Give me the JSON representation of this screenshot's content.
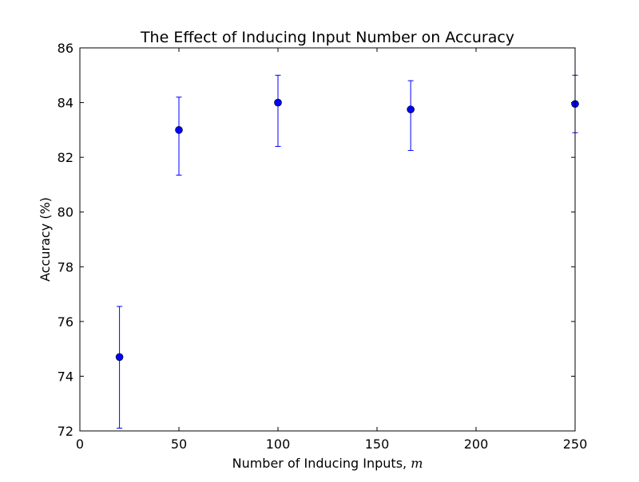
{
  "chart_data": {
    "type": "scatter",
    "title": "The Effect of Inducing Input Number on Accuracy",
    "xlabel": "Number of Inducing Inputs, ",
    "xlabel_var": "m",
    "ylabel": "Accuracy (%)",
    "xlim": [
      0,
      250
    ],
    "ylim": [
      72,
      86
    ],
    "xticks": [
      0,
      50,
      100,
      150,
      200,
      250
    ],
    "yticks": [
      72,
      74,
      76,
      78,
      80,
      82,
      84,
      86
    ],
    "grid": false,
    "series": [
      {
        "x": [
          20,
          50,
          100,
          167,
          250
        ],
        "y": [
          74.7,
          83.0,
          84.0,
          83.75,
          83.95
        ],
        "yerr_low": [
          72.1,
          81.35,
          82.4,
          82.25,
          82.9
        ],
        "yerr_high": [
          76.55,
          84.2,
          85.0,
          84.8,
          85.0
        ],
        "color": "#0000ff",
        "marker": "circle",
        "style": "errorbar"
      }
    ]
  }
}
